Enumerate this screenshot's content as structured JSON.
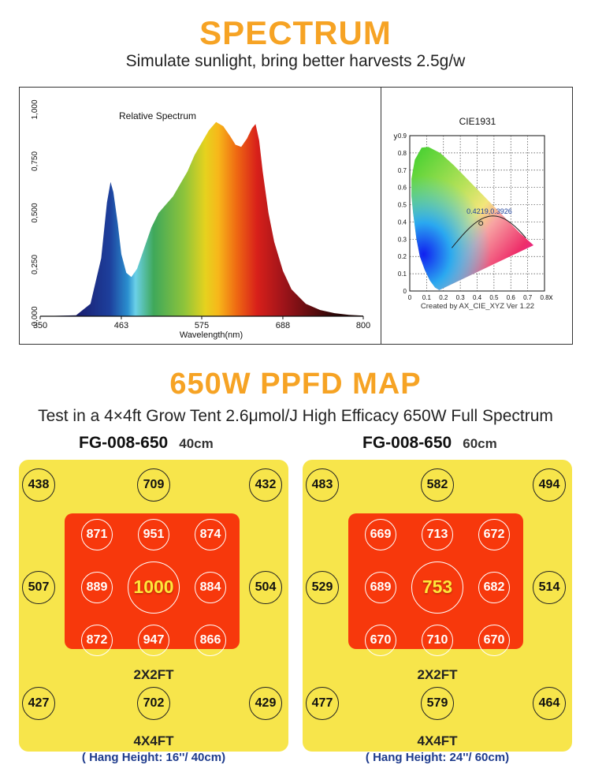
{
  "header": {
    "title": "SPECTRUM",
    "subtitle": "Simulate sunlight, bring better harvests 2.5g/w"
  },
  "chart_data": [
    {
      "type": "area",
      "title": "Relative Spectrum",
      "xlabel": "Wavelength(nm)",
      "ylabel": "",
      "x_ticks": [
        "350",
        "463",
        "575",
        "688",
        "800"
      ],
      "y_ticks": [
        "0,000",
        "0,250",
        "0,500",
        "0,750",
        "1,000"
      ],
      "xlim": [
        350,
        800
      ],
      "ylim": [
        0,
        1
      ],
      "x": [
        350,
        400,
        420,
        435,
        443,
        448,
        452,
        458,
        463,
        470,
        477,
        485,
        495,
        505,
        515,
        525,
        535,
        545,
        555,
        565,
        575,
        585,
        595,
        605,
        615,
        622,
        630,
        638,
        645,
        650,
        655,
        660,
        668,
        676,
        688,
        700,
        720,
        740,
        760,
        780,
        800
      ],
      "values": [
        0,
        0.005,
        0.06,
        0.28,
        0.55,
        0.65,
        0.6,
        0.45,
        0.3,
        0.21,
        0.19,
        0.23,
        0.33,
        0.43,
        0.5,
        0.54,
        0.58,
        0.64,
        0.7,
        0.78,
        0.84,
        0.9,
        0.94,
        0.92,
        0.87,
        0.83,
        0.82,
        0.86,
        0.91,
        0.93,
        0.85,
        0.7,
        0.5,
        0.36,
        0.22,
        0.13,
        0.06,
        0.03,
        0.015,
        0.007,
        0.003
      ]
    },
    {
      "type": "scatter",
      "title": "CIE1931",
      "xlabel": "x",
      "ylabel": "y",
      "x_ticks": [
        "0",
        "0.1",
        "0.2",
        "0.3",
        "0.4",
        "0.5",
        "0.6",
        "0.7",
        "0.8"
      ],
      "y_ticks": [
        "0",
        "0.1",
        "0.2",
        "0.3",
        "0.4",
        "0.5",
        "0.6",
        "0.7",
        "0.8",
        "0.9"
      ],
      "xlim": [
        0,
        0.8
      ],
      "ylim": [
        0,
        0.9
      ],
      "point": {
        "x": 0.4219,
        "y": 0.3926,
        "label": "0.4219,0.3926"
      },
      "footer": "Created by AX_CIE_XYZ Ver 1.22"
    },
    {
      "type": "heatmap",
      "title": "FG-008-650",
      "subtitle": "40cm",
      "outer": [
        "438",
        "709",
        "432",
        "507",
        "504",
        "427",
        "702",
        "429"
      ],
      "inner": [
        "871",
        "951",
        "874",
        "889",
        "1000",
        "884",
        "872",
        "947",
        "866"
      ],
      "inner_label": "2X2FT",
      "outer_label": "4X4FT",
      "note": "( Hang Height: 16''/ 40cm)"
    },
    {
      "type": "heatmap",
      "title": "FG-008-650",
      "subtitle": "60cm",
      "outer": [
        "483",
        "582",
        "494",
        "529",
        "514",
        "477",
        "579",
        "464"
      ],
      "inner": [
        "669",
        "713",
        "672",
        "689",
        "753",
        "682",
        "670",
        "710",
        "670"
      ],
      "inner_label": "2X2FT",
      "outer_label": "4X4FT",
      "note": "( Hang Height: 24''/ 60cm)"
    }
  ],
  "ppfd": {
    "title": "650W PPFD MAP",
    "subtitle": "Test in a 4×4ft Grow Tent 2.6μmol/J High Efficacy 650W Full Spectrum"
  },
  "colors": {
    "accent": "#f6a324",
    "map_bg": "#f7e54b",
    "map_inner": "#f7380c",
    "note_blue": "#1e3b8c"
  }
}
